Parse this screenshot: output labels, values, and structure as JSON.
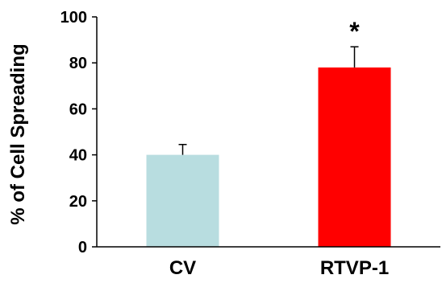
{
  "chart_data": {
    "type": "bar",
    "categories": [
      "CV",
      "RTVP-1"
    ],
    "values": [
      40,
      78
    ],
    "errors": [
      4.5,
      9
    ],
    "colors": [
      "#b8dde0",
      "#ff0000"
    ],
    "title": "",
    "xlabel": "",
    "ylabel": "% of Cell Spreading",
    "ylim": [
      0,
      100
    ],
    "yticks": [
      0,
      20,
      40,
      60,
      80,
      100
    ],
    "grid": false,
    "annotations": [
      {
        "category": "RTVP-1",
        "text": "*"
      }
    ]
  }
}
